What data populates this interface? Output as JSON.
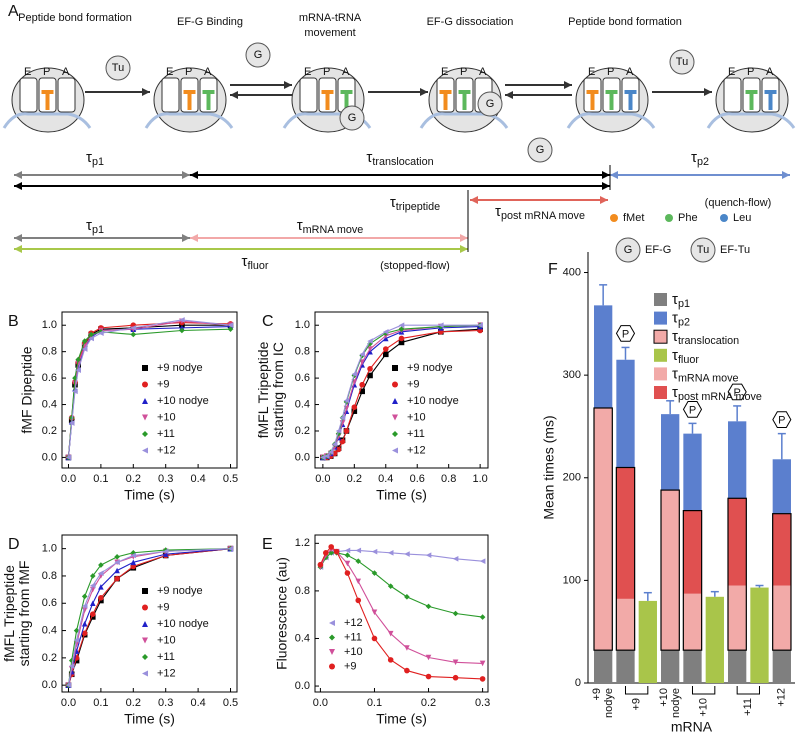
{
  "panel_a": {
    "label": "A",
    "steps": [
      [
        "Peptide bond formation"
      ],
      [
        "EF-G Binding"
      ],
      [
        "mRNA-tRNA",
        "movement"
      ],
      [
        "EF-G dissociation"
      ],
      [
        "Peptide bond formation"
      ]
    ],
    "sites": [
      "E",
      "P",
      "A"
    ],
    "factors": {
      "tu": "Tu",
      "g": "G"
    },
    "timeline": [
      {
        "base": "τ",
        "sub": "p1",
        "color": "#808080"
      },
      {
        "base": "τ",
        "sub": "translocation",
        "color": "#000000"
      },
      {
        "base": "τ",
        "sub": "p2",
        "color": "#6f8fd0"
      },
      {
        "base": "τ",
        "sub": "tripeptide",
        "color": "#000000"
      },
      {
        "base": "τ",
        "sub": "post mRNA move",
        "color": "#e0645a"
      },
      {
        "base": "τ",
        "sub": "p1",
        "color": "#808080"
      },
      {
        "base": "τ",
        "sub": "mRNA move",
        "color": "#f2a8a8"
      },
      {
        "base": "τ",
        "sub": "fluor",
        "color": "#a8c84a"
      }
    ],
    "methods": [
      "(quench-flow)",
      "(stopped-flow)"
    ],
    "legend": [
      {
        "label": "fMet",
        "color": "#f28c1e"
      },
      {
        "label": "Phe",
        "color": "#5cb85c"
      },
      {
        "label": "Leu",
        "color": "#4a86c8"
      }
    ],
    "factor_legend": [
      {
        "symbol": "G",
        "label": "EF-G"
      },
      {
        "symbol": "Tu",
        "label": "EF-Tu"
      }
    ]
  },
  "chart_data": [
    {
      "type": "line",
      "label": "B",
      "x_label": "Time (s)",
      "y_label": [
        "fMF Dipeptide"
      ],
      "x": [
        0,
        0.01,
        0.02,
        0.03,
        0.05,
        0.07,
        0.1,
        0.2,
        0.35,
        0.5
      ],
      "xlim": [
        -0.02,
        0.52
      ],
      "ylim": [
        -0.08,
        1.1
      ],
      "xticks": [
        {
          "value": 0,
          "label": "0.0"
        },
        0.1,
        0.2,
        0.3,
        0.4,
        0.5
      ],
      "yticks": [
        {
          "value": 0,
          "label": "0.0"
        },
        0.2,
        0.4,
        0.6,
        0.8,
        {
          "value": 1,
          "label": "1.0"
        }
      ],
      "series": [
        {
          "name": "+9 nodye",
          "color": "#000000",
          "marker": "square",
          "values": [
            0,
            0.28,
            0.55,
            0.7,
            0.85,
            0.93,
            0.97,
            0.98,
            1.0,
            1.0
          ]
        },
        {
          "name": "+9",
          "color": "#e02020",
          "marker": "circle",
          "values": [
            0,
            0.3,
            0.57,
            0.72,
            0.86,
            0.94,
            0.98,
            1.0,
            1.02,
            1.01
          ]
        },
        {
          "name": "+10 nodye",
          "color": "#2020c8",
          "marker": "tri-up",
          "values": [
            0,
            0.27,
            0.52,
            0.68,
            0.83,
            0.91,
            0.96,
            0.97,
            0.98,
            0.99
          ]
        },
        {
          "name": "+10",
          "color": "#d0509a",
          "marker": "tri-down",
          "values": [
            0,
            0.29,
            0.56,
            0.71,
            0.84,
            0.92,
            0.96,
            0.97,
            1.03,
            1.0
          ]
        },
        {
          "name": "+11",
          "color": "#2a9a2a",
          "marker": "diamond",
          "values": [
            0,
            0.3,
            0.6,
            0.74,
            0.88,
            0.93,
            0.95,
            0.93,
            0.96,
            0.97
          ]
        },
        {
          "name": "+12",
          "color": "#9a90dc",
          "marker": "tri-left",
          "values": [
            0,
            0.26,
            0.5,
            0.66,
            0.82,
            0.9,
            0.94,
            0.98,
            1.04,
            1.0
          ]
        }
      ]
    },
    {
      "type": "line",
      "label": "C",
      "x_label": "Time (s)",
      "y_label": [
        "fMFL Tripeptide",
        "starting from IC"
      ],
      "x": [
        0,
        0.025,
        0.05,
        0.075,
        0.1,
        0.125,
        0.15,
        0.2,
        0.25,
        0.3,
        0.4,
        0.5,
        0.75,
        1.0
      ],
      "xlim": [
        -0.05,
        1.05
      ],
      "ylim": [
        -0.08,
        1.1
      ],
      "xticks": [
        {
          "value": 0,
          "label": "0.0"
        },
        0.2,
        0.4,
        0.6,
        0.8,
        {
          "value": 1,
          "label": "1.0"
        }
      ],
      "yticks": [
        {
          "value": 0,
          "label": "0.0"
        },
        0.2,
        0.4,
        0.6,
        0.8,
        {
          "value": 1,
          "label": "1.0"
        }
      ],
      "series": [
        {
          "name": "+9 nodye",
          "color": "#000000",
          "marker": "square",
          "values": [
            0,
            0,
            0.01,
            0.03,
            0.07,
            0.13,
            0.2,
            0.35,
            0.5,
            0.62,
            0.78,
            0.87,
            0.95,
            0.97
          ]
        },
        {
          "name": "+9",
          "color": "#e02020",
          "marker": "circle",
          "values": [
            0,
            0,
            0.01,
            0.03,
            0.06,
            0.12,
            0.2,
            0.38,
            0.55,
            0.67,
            0.82,
            0.9,
            0.95,
            0.96
          ]
        },
        {
          "name": "+10 nodye",
          "color": "#2020c8",
          "marker": "tri-up",
          "values": [
            0,
            0.01,
            0.03,
            0.08,
            0.15,
            0.25,
            0.35,
            0.55,
            0.7,
            0.8,
            0.9,
            0.95,
            0.98,
            0.99
          ]
        },
        {
          "name": "+10",
          "color": "#d0509a",
          "marker": "tri-down",
          "values": [
            0,
            0.01,
            0.03,
            0.08,
            0.16,
            0.26,
            0.37,
            0.57,
            0.72,
            0.82,
            0.92,
            0.96,
            0.99,
            1.0
          ]
        },
        {
          "name": "+11",
          "color": "#2a9a2a",
          "marker": "diamond",
          "values": [
            0,
            0.01,
            0.04,
            0.1,
            0.18,
            0.3,
            0.42,
            0.62,
            0.77,
            0.86,
            0.94,
            0.97,
            0.99,
            1.0
          ]
        },
        {
          "name": "+12",
          "color": "#9a90dc",
          "marker": "tri-left",
          "values": [
            0,
            0.01,
            0.04,
            0.1,
            0.2,
            0.3,
            0.43,
            0.63,
            0.78,
            0.88,
            0.95,
            1.0,
            1.0,
            1.0
          ]
        }
      ]
    },
    {
      "type": "line",
      "label": "D",
      "x_label": "Time (s)",
      "y_label": [
        "fMFL Tripeptide",
        "starting from fMF"
      ],
      "x": [
        0,
        0.01,
        0.025,
        0.05,
        0.075,
        0.1,
        0.15,
        0.2,
        0.3,
        0.5
      ],
      "xlim": [
        -0.02,
        0.52
      ],
      "ylim": [
        -0.05,
        1.1
      ],
      "xticks": [
        {
          "value": 0,
          "label": "0.0"
        },
        0.1,
        0.2,
        0.3,
        0.4,
        0.5
      ],
      "yticks": [
        {
          "value": 0,
          "label": "0.0"
        },
        0.2,
        0.4,
        0.6,
        0.8,
        {
          "value": 1,
          "label": "1.0"
        }
      ],
      "series": [
        {
          "name": "+9 nodye",
          "color": "#000000",
          "marker": "square",
          "values": [
            0,
            0.08,
            0.18,
            0.37,
            0.5,
            0.62,
            0.78,
            0.86,
            0.95,
            1.0
          ]
        },
        {
          "name": "+9",
          "color": "#e02020",
          "marker": "circle",
          "values": [
            0,
            0.08,
            0.2,
            0.38,
            0.52,
            0.64,
            0.78,
            0.87,
            0.95,
            1.0
          ]
        },
        {
          "name": "+10 nodye",
          "color": "#2020c8",
          "marker": "tri-up",
          "values": [
            0,
            0.1,
            0.25,
            0.45,
            0.6,
            0.72,
            0.84,
            0.9,
            0.96,
            1.0
          ]
        },
        {
          "name": "+10",
          "color": "#d0509a",
          "marker": "tri-down",
          "values": [
            0,
            0.12,
            0.3,
            0.55,
            0.7,
            0.8,
            0.9,
            0.94,
            0.98,
            1.0
          ]
        },
        {
          "name": "+11",
          "color": "#2a9a2a",
          "marker": "diamond",
          "values": [
            0,
            0.18,
            0.4,
            0.65,
            0.8,
            0.88,
            0.94,
            0.97,
            0.99,
            1.0
          ]
        },
        {
          "name": "+12",
          "color": "#9a90dc",
          "marker": "tri-left",
          "values": [
            0,
            0.14,
            0.33,
            0.58,
            0.73,
            0.82,
            0.9,
            0.95,
            0.98,
            1.0
          ]
        }
      ]
    },
    {
      "type": "line",
      "label": "E",
      "x_label": "Time (s)",
      "y_label": [
        "Fluorescence (au)"
      ],
      "x": [
        0,
        0.01,
        0.02,
        0.03,
        0.05,
        0.07,
        0.1,
        0.13,
        0.16,
        0.2,
        0.25,
        0.3
      ],
      "xlim": [
        -0.01,
        0.31
      ],
      "ylim": [
        -0.05,
        1.27
      ],
      "xticks": [
        {
          "value": 0,
          "label": "0.0"
        },
        0.1,
        0.2,
        0.3
      ],
      "yticks": [
        {
          "value": 0,
          "label": "0.0"
        },
        0.4,
        0.8,
        1.2
      ],
      "series": [
        {
          "name": "+12",
          "color": "#9a90dc",
          "marker": "tri-left",
          "values": [
            1.0,
            1.08,
            1.12,
            1.13,
            1.14,
            1.14,
            1.13,
            1.12,
            1.11,
            1.1,
            1.07,
            1.05
          ]
        },
        {
          "name": "+11",
          "color": "#2a9a2a",
          "marker": "diamond",
          "values": [
            1.0,
            1.08,
            1.12,
            1.12,
            1.1,
            1.05,
            0.95,
            0.84,
            0.75,
            0.67,
            0.61,
            0.58
          ]
        },
        {
          "name": "+10",
          "color": "#d0509a",
          "marker": "tri-down",
          "values": [
            1.0,
            1.1,
            1.15,
            1.13,
            1.03,
            0.88,
            0.62,
            0.44,
            0.32,
            0.24,
            0.2,
            0.19
          ]
        },
        {
          "name": "+9",
          "color": "#e02020",
          "marker": "circle",
          "values": [
            1.02,
            1.12,
            1.17,
            1.13,
            0.95,
            0.72,
            0.4,
            0.22,
            0.13,
            0.08,
            0.07,
            0.06
          ]
        }
      ]
    },
    {
      "type": "bar",
      "label": "F",
      "x_label": "mRNA",
      "y_label": "Mean times (ms)",
      "categories": [
        [
          "+9",
          "nodye"
        ],
        [
          "+9"
        ],
        [
          "+10",
          "nodye"
        ],
        [
          "+10"
        ],
        [
          "+11"
        ],
        [
          "+12"
        ]
      ],
      "ylim": [
        0,
        420
      ],
      "yticks": [
        0,
        100,
        200,
        300,
        400
      ],
      "series": [
        {
          "name": "τ",
          "sub": "p1",
          "color": "#7f7f7f",
          "values": [
            32,
            32,
            32,
            32,
            32,
            32
          ]
        },
        {
          "name": "τ",
          "sub": "mRNA move",
          "color": "#f2aaa8",
          "values": [
            236,
            50,
            156,
            55,
            63,
            63
          ]
        },
        {
          "name": "τ",
          "sub": "post mRNA move",
          "color": "#e05050",
          "values": [
            null,
            128,
            null,
            81,
            85,
            70
          ]
        },
        {
          "name": "τ",
          "sub": "p2",
          "color": "#5b7fce",
          "values": [
            100,
            105,
            74,
            75,
            75,
            53
          ],
          "errors": [
            20,
            12,
            13,
            10,
            15,
            25
          ]
        },
        {
          "name": "τ",
          "sub": "fluor",
          "color": "#a9c54a",
          "stacked": false,
          "values": [
            null,
            80,
            null,
            84,
            93,
            null
          ],
          "errors": [
            null,
            8,
            null,
            5,
            2,
            null
          ]
        }
      ],
      "outline": {
        "name": "τ",
        "sub": "translocation",
        "color": "#000000"
      },
      "phospho_label": "P",
      "phosphorylated": [
        false,
        true,
        false,
        true,
        true,
        true
      ]
    }
  ]
}
